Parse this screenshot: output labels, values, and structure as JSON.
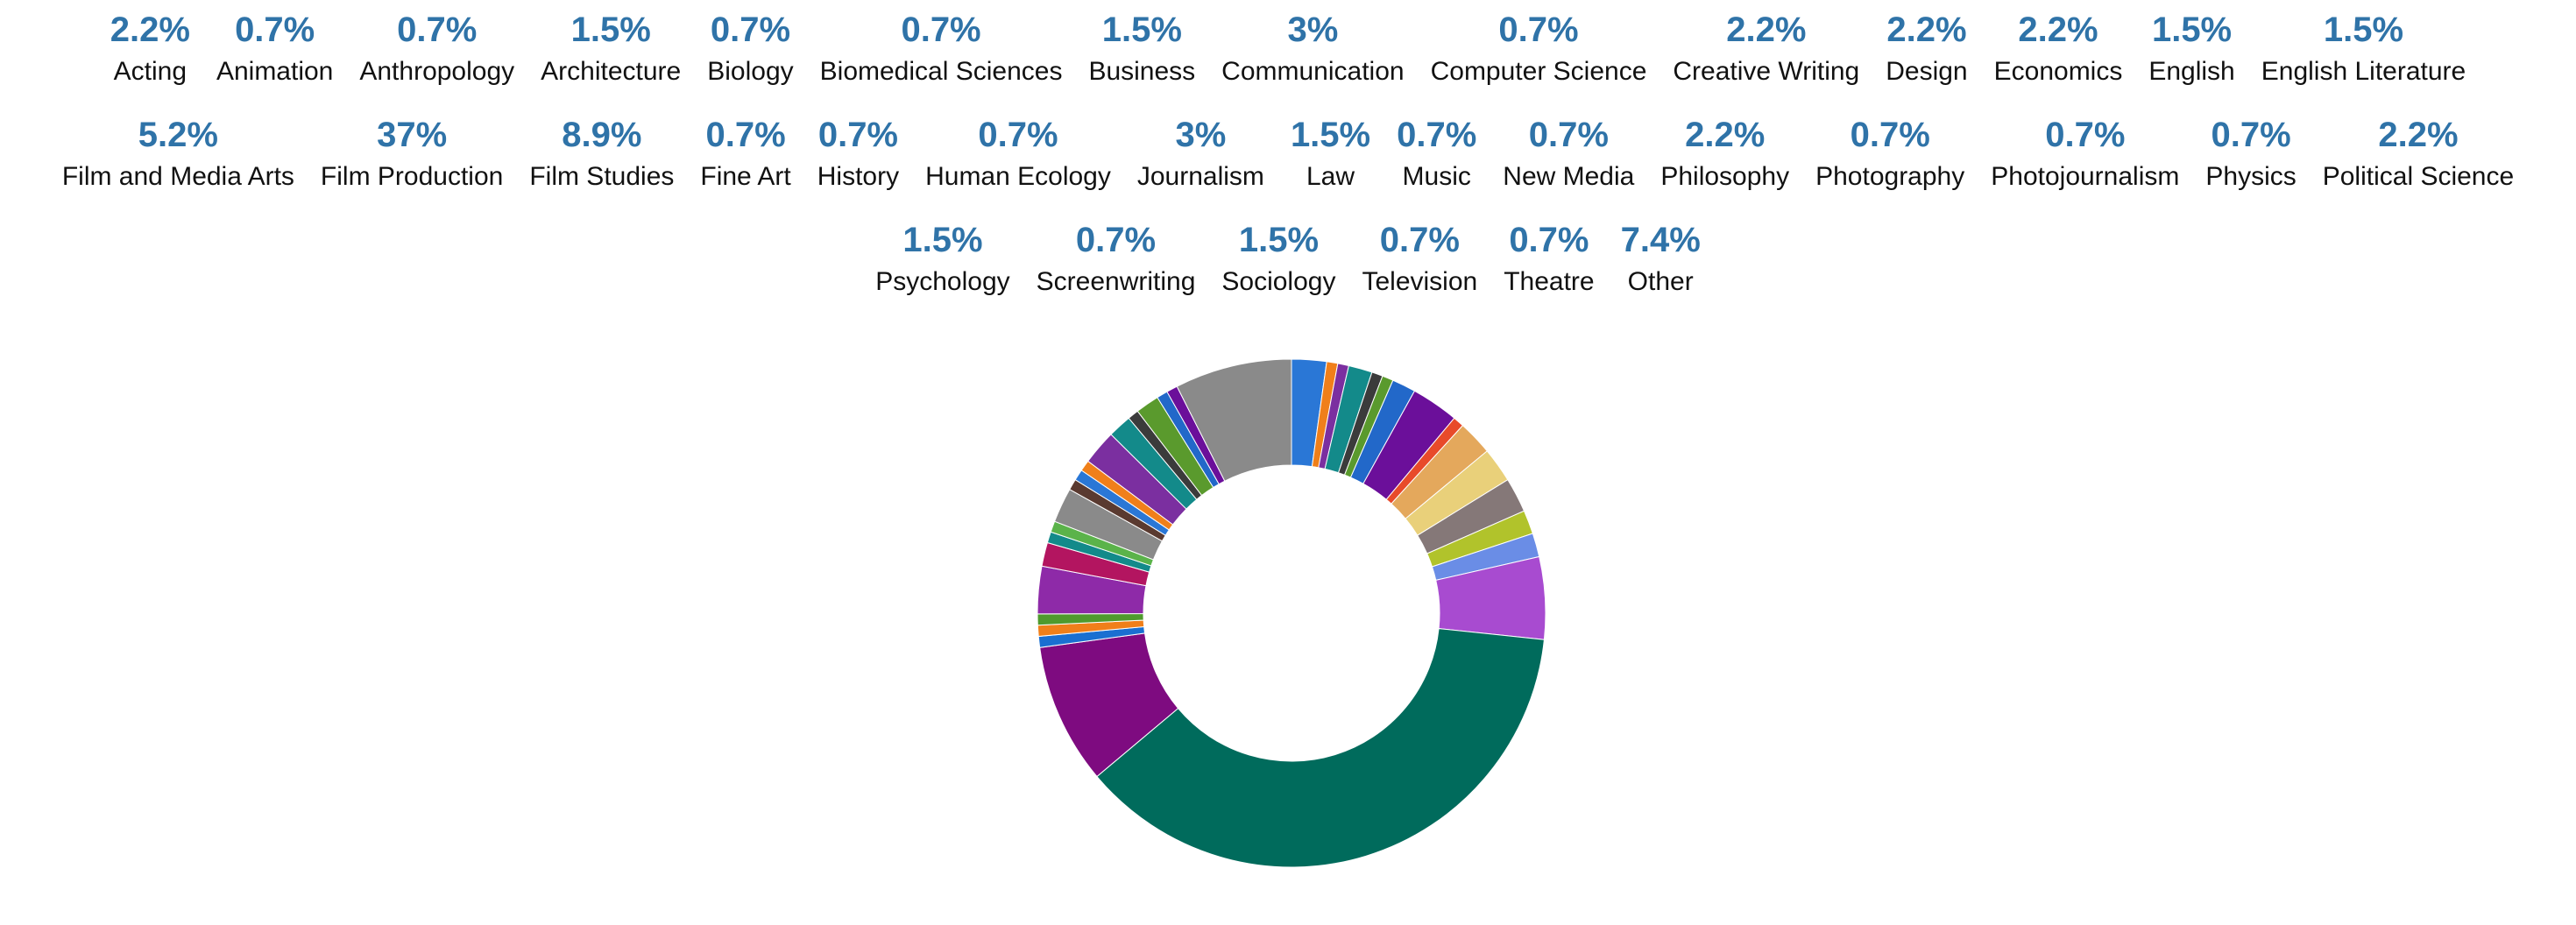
{
  "chart_data": {
    "type": "donut",
    "categories": [
      "Acting",
      "Animation",
      "Anthropology",
      "Architecture",
      "Biology",
      "Biomedical Sciences",
      "Business",
      "Communication",
      "Computer Science",
      "Creative Writing",
      "Design",
      "Economics",
      "English",
      "English Literature",
      "Film and Media Arts",
      "Film Production",
      "Film Studies",
      "Fine Art",
      "History",
      "Human Ecology",
      "Journalism",
      "Law",
      "Music",
      "New Media",
      "Philosophy",
      "Photography",
      "Photojournalism",
      "Physics",
      "Political Science",
      "Psychology",
      "Screenwriting",
      "Sociology",
      "Television",
      "Theatre",
      "Other"
    ],
    "values": [
      2.2,
      0.7,
      0.7,
      1.5,
      0.7,
      0.7,
      1.5,
      3,
      0.7,
      2.2,
      2.2,
      2.2,
      1.5,
      1.5,
      5.2,
      37,
      8.9,
      0.7,
      0.7,
      0.7,
      3,
      1.5,
      0.7,
      0.7,
      2.2,
      0.7,
      0.7,
      0.7,
      2.2,
      1.5,
      0.7,
      1.5,
      0.7,
      0.7,
      7.4
    ],
    "value_labels": [
      "2.2%",
      "0.7%",
      "0.7%",
      "1.5%",
      "0.7%",
      "0.7%",
      "1.5%",
      "3%",
      "0.7%",
      "2.2%",
      "2.2%",
      "2.2%",
      "1.5%",
      "1.5%",
      "5.2%",
      "37%",
      "8.9%",
      "0.7%",
      "0.7%",
      "0.7%",
      "3%",
      "1.5%",
      "0.7%",
      "0.7%",
      "2.2%",
      "0.7%",
      "0.7%",
      "0.7%",
      "2.2%",
      "1.5%",
      "0.7%",
      "1.5%",
      "0.7%",
      "0.7%",
      "7.4%"
    ],
    "colors": [
      "#2a77d6",
      "#f07f1a",
      "#7b2fa0",
      "#138a8a",
      "#3b3b3b",
      "#5a9a2d",
      "#2268c9",
      "#6b0f9a",
      "#e84a2a",
      "#e4a85c",
      "#e9d07a",
      "#857878",
      "#b1c32b",
      "#6a8de6",
      "#a84bd0",
      "#006b5c",
      "#7e0b80",
      "#1a6fd1",
      "#f07f1a",
      "#4f9a2d",
      "#8e2aa8",
      "#b31560",
      "#138a8a",
      "#5bb34a",
      "#8a8a8a",
      "#5a3a30",
      "#2a77d6",
      "#f07f1a",
      "#7b2fa0",
      "#138a8a",
      "#3b3b3b",
      "#5a9a2d",
      "#2268c9",
      "#6b0f9a",
      "#8a8a8a"
    ]
  }
}
